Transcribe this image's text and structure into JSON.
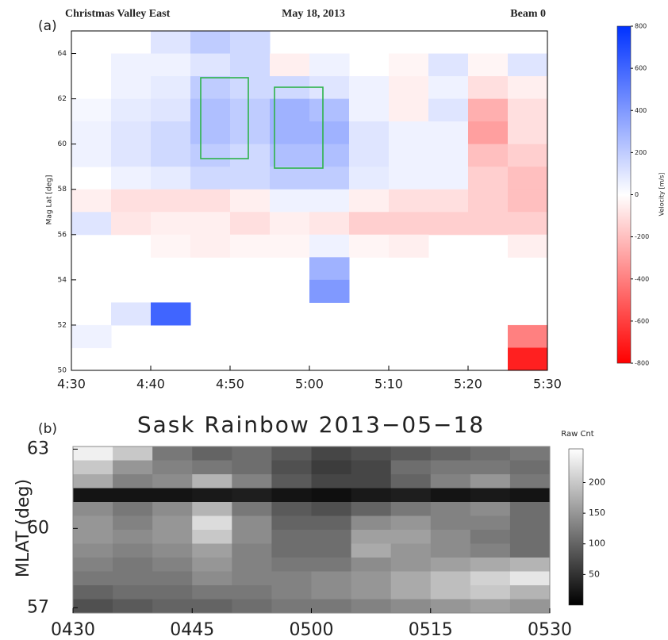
{
  "chart_data": [
    {
      "type": "heatmap",
      "panel_label": "(a)",
      "title": "Christmas Valley East",
      "subtitle": "May 18, 2013",
      "annotation": "Beam 0",
      "y_label": "Mag Lat [deg]",
      "xlim": [
        "4:30",
        "5:30"
      ],
      "xticks": [
        "4:30",
        "4:40",
        "4:50",
        "5:00",
        "5:10",
        "5:20",
        "5:30"
      ],
      "ylim": [
        50,
        65
      ],
      "yticks": [
        50,
        52,
        54,
        56,
        58,
        60,
        62,
        64
      ],
      "values": [
        [
          null,
          null,
          100,
          200,
          150,
          null,
          null,
          null,
          null,
          null,
          null,
          null
        ],
        [
          null,
          50,
          50,
          100,
          150,
          -50,
          50,
          null,
          -30,
          100,
          -30,
          100
        ],
        [
          null,
          50,
          80,
          200,
          150,
          150,
          100,
          50,
          -50,
          50,
          -100,
          -50
        ],
        [
          30,
          80,
          100,
          250,
          200,
          300,
          250,
          50,
          -50,
          100,
          -250,
          -100
        ],
        [
          50,
          100,
          150,
          250,
          200,
          300,
          300,
          100,
          50,
          50,
          -300,
          -100
        ],
        [
          50,
          100,
          150,
          200,
          150,
          250,
          250,
          100,
          50,
          50,
          -200,
          -150
        ],
        [
          null,
          50,
          80,
          150,
          150,
          200,
          200,
          80,
          50,
          50,
          -150,
          -200
        ],
        [
          -50,
          -100,
          -100,
          -100,
          -50,
          50,
          50,
          -50,
          -100,
          -100,
          -150,
          -200
        ],
        [
          100,
          -80,
          -50,
          -50,
          -100,
          -50,
          -80,
          -150,
          -150,
          -150,
          -150,
          -150
        ],
        [
          null,
          null,
          -30,
          -50,
          -30,
          -30,
          50,
          -30,
          -50,
          null,
          null,
          -50
        ],
        [
          null,
          null,
          null,
          null,
          null,
          null,
          300,
          null,
          null,
          null,
          null,
          null
        ],
        [
          null,
          null,
          null,
          null,
          null,
          null,
          400,
          null,
          null,
          null,
          null,
          null
        ],
        [
          null,
          100,
          600,
          null,
          null,
          null,
          null,
          null,
          null,
          null,
          null,
          null
        ],
        [
          50,
          null,
          null,
          null,
          null,
          null,
          null,
          null,
          null,
          null,
          null,
          -400
        ],
        [
          null,
          null,
          null,
          null,
          null,
          null,
          null,
          null,
          null,
          null,
          null,
          -700
        ]
      ],
      "colorbar": {
        "label": "Velocity [m/s]",
        "colormap": "red-white-blue",
        "lim": [
          -800,
          800
        ],
        "ticks": [
          -800,
          -600,
          -400,
          -200,
          0,
          200,
          400,
          600,
          800
        ]
      }
    },
    {
      "type": "heatmap",
      "panel_label": "(b)",
      "title": "Sask Rainbow 2013−05−18",
      "y_label": "MLAT (deg)",
      "xlim": [
        "0430",
        "0530"
      ],
      "xticks": [
        "0430",
        "0445",
        "0500",
        "0515",
        "0530"
      ],
      "ylim": [
        56.8,
        63.1
      ],
      "yticks": [
        57,
        60,
        63
      ],
      "values": [
        [
          240,
          200,
          120,
          100,
          110,
          90,
          70,
          80,
          90,
          100,
          110,
          120
        ],
        [
          200,
          150,
          130,
          120,
          110,
          80,
          60,
          70,
          110,
          120,
          120,
          110
        ],
        [
          170,
          130,
          140,
          180,
          130,
          90,
          70,
          70,
          100,
          130,
          150,
          120
        ],
        [
          20,
          20,
          20,
          25,
          30,
          20,
          15,
          25,
          30,
          20,
          25,
          20
        ],
        [
          140,
          120,
          140,
          180,
          120,
          90,
          80,
          100,
          120,
          130,
          140,
          110
        ],
        [
          150,
          130,
          150,
          220,
          140,
          100,
          100,
          140,
          150,
          130,
          130,
          110
        ],
        [
          150,
          140,
          150,
          200,
          140,
          110,
          110,
          160,
          160,
          140,
          120,
          110
        ],
        [
          140,
          130,
          140,
          160,
          130,
          110,
          110,
          170,
          150,
          140,
          130,
          110
        ],
        [
          130,
          120,
          130,
          150,
          130,
          120,
          120,
          140,
          150,
          160,
          170,
          180
        ],
        [
          120,
          120,
          120,
          140,
          130,
          130,
          140,
          150,
          170,
          190,
          210,
          230
        ],
        [
          100,
          110,
          110,
          120,
          120,
          130,
          140,
          150,
          170,
          190,
          200,
          180
        ],
        [
          80,
          90,
          100,
          100,
          110,
          120,
          120,
          130,
          140,
          150,
          160,
          150
        ]
      ],
      "colorbar": {
        "label": "Raw Cnt",
        "colormap": "gray",
        "lim": [
          0,
          255
        ],
        "ticks": [
          50,
          100,
          150,
          200
        ]
      }
    }
  ]
}
